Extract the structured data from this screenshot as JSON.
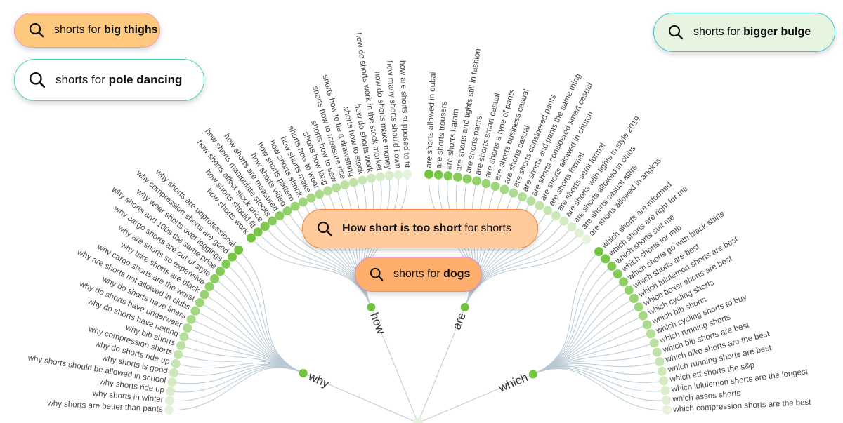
{
  "root": "shorts",
  "colors": {
    "dot_strong": "#72c43f",
    "dot_weak": "#e6f2dc",
    "link": "#b9c9d3",
    "text": "#444444"
  },
  "branches": [
    {
      "label": "why",
      "leaves": [
        "why shorts are unprofessional",
        "why compression shorts are good",
        "why wear shorts over leggings",
        "why shorts and 100s the same price",
        "why cargo shorts are out of style",
        "why are shorts so expensive",
        "why bike shorts are black",
        "why cargo shorts are the worst",
        "why are shorts not allowed in clubs",
        "why do shorts have liners",
        "why do shorts have underwear",
        "why do shorts have netting",
        "why bib shorts",
        "why compression shorts",
        "why do shorts ride up",
        "why shorts is good",
        "why shorts should be allowed in school",
        "why shorts ride up",
        "why shorts in winter",
        "why shorts are better than pants"
      ]
    },
    {
      "label": "how",
      "leaves": [
        "how shorts work",
        "how shorts should fit",
        "how shorts affect stock price",
        "how shorts manipulate stocks",
        "how shorts are measured",
        "how shorts video",
        "how shorts pattern",
        "how shorts shrink",
        "how shorts make",
        "shorts how to wear",
        "shorts how long",
        "shorts how to sew",
        "shorts how to measure rise",
        "shorts how to tie a drawstring",
        "shorts how to stock",
        "how do shorts work",
        "how do shorts work in the stock market",
        "how do shorts make money",
        "how many shorts should i own",
        "how are shorts supposed to fit"
      ]
    },
    {
      "label": "are",
      "leaves": [
        "are shorts allowed in dubai",
        "are shorts trousers",
        "are shorts haram",
        "are shorts and tights still in fashion",
        "are shorts pants",
        "are shorts smart casual",
        "are shorts a type of pants",
        "are shorts business casual",
        "are shorts casual",
        "are shorts considered pants",
        "are shorts and pants the same thing",
        "are shorts considered smart casual",
        "are shorts allowed in church",
        "are shorts formal",
        "are shorts semi formal",
        "are shorts with tights in style 2019",
        "are shorts allowed in clubs",
        "are shorts casual attire",
        "are shorts allowed in angkas"
      ]
    },
    {
      "label": "which",
      "leaves": [
        "which shorts are informed",
        "which shorts are right for me",
        "which shorts suit me",
        "which shorts for mtb",
        "which shorts go with black shirts",
        "which shorts are best",
        "which lululemon shorts are best",
        "which boxer shorts are best",
        "which cycling shorts",
        "which bib shorts",
        "which cycling shorts to buy",
        "which running shorts",
        "which bib shorts are best",
        "which bike shorts are the best",
        "which running shorts are best",
        "which etf shorts the s&p",
        "which lululemon shorts are the longest",
        "which assos shorts",
        "which compression shorts are the best"
      ]
    }
  ],
  "bubbles": [
    {
      "prefix": "shorts for ",
      "bold": "big thighs",
      "suffix": "",
      "bg": "#fec97f",
      "border": "#f09ac0",
      "icon": "search-icon"
    },
    {
      "prefix": "shorts for ",
      "bold": "pole dancing",
      "suffix": "",
      "bg": "#ffffff",
      "border": "#4fd8a6",
      "icon": "search-icon"
    },
    {
      "prefix": "",
      "bold": "How short is too short",
      "suffix": " for shorts",
      "bg": "#fec99b",
      "border": "#ef8a3e",
      "icon": "search-icon"
    },
    {
      "prefix": "shorts for ",
      "bold": "bigger bulge",
      "suffix": "",
      "bg": "#e7f4df",
      "border": "#3ec6d6",
      "icon": "search-icon"
    },
    {
      "prefix": "shorts for ",
      "bold": "dogs",
      "suffix": "",
      "bg": "#fdae6c",
      "border": "#cf8ad6",
      "icon": "search-icon"
    }
  ]
}
